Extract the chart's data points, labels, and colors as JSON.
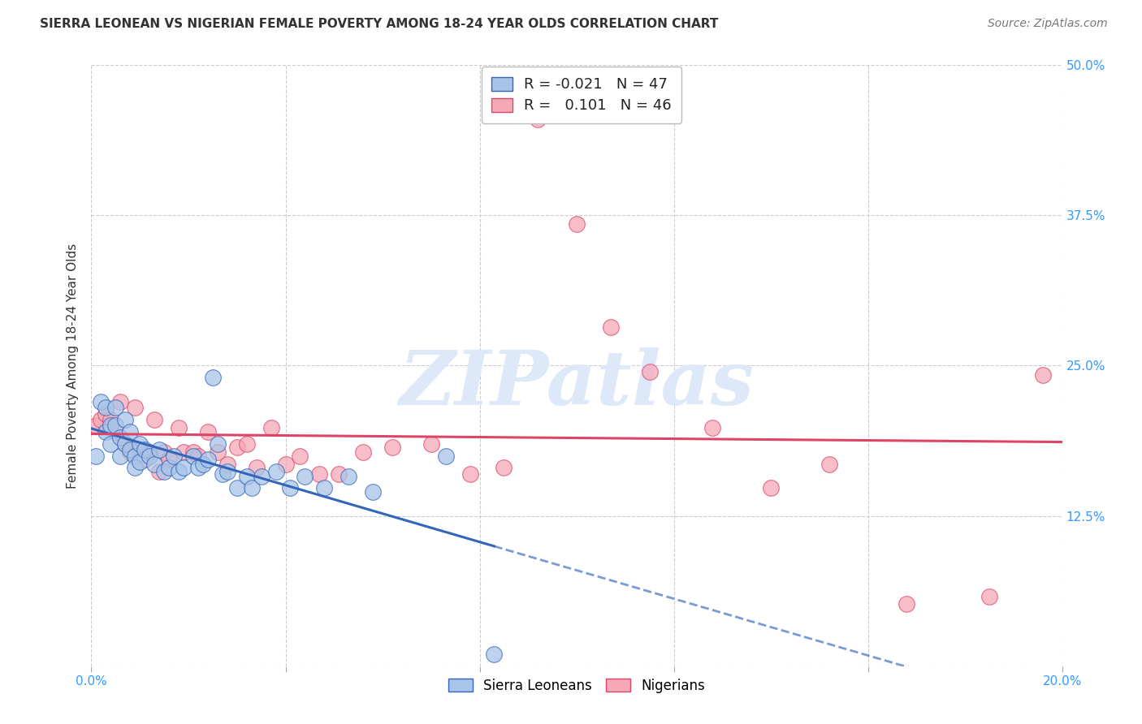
{
  "title": "SIERRA LEONEAN VS NIGERIAN FEMALE POVERTY AMONG 18-24 YEAR OLDS CORRELATION CHART",
  "source": "Source: ZipAtlas.com",
  "ylabel": "Female Poverty Among 18-24 Year Olds",
  "xlim": [
    0.0,
    0.2
  ],
  "ylim": [
    0.0,
    0.5
  ],
  "sl_R": -0.021,
  "sl_N": 47,
  "ng_R": 0.101,
  "ng_N": 46,
  "sl_color": "#a8c4e8",
  "ng_color": "#f5a8b8",
  "sl_line_color": "#3366bb",
  "ng_line_color": "#dd4466",
  "background_color": "#ffffff",
  "grid_color": "#cccccc",
  "watermark_text": "ZIPatlas",
  "watermark_color": "#dde8f8",
  "sl_x": [
    0.001,
    0.002,
    0.003,
    0.003,
    0.004,
    0.004,
    0.005,
    0.005,
    0.006,
    0.006,
    0.007,
    0.007,
    0.008,
    0.008,
    0.009,
    0.009,
    0.01,
    0.01,
    0.011,
    0.012,
    0.013,
    0.014,
    0.015,
    0.016,
    0.017,
    0.018,
    0.019,
    0.021,
    0.022,
    0.023,
    0.024,
    0.025,
    0.026,
    0.027,
    0.028,
    0.03,
    0.032,
    0.033,
    0.035,
    0.038,
    0.041,
    0.044,
    0.048,
    0.053,
    0.058,
    0.073,
    0.083
  ],
  "sl_y": [
    0.175,
    0.22,
    0.195,
    0.215,
    0.2,
    0.185,
    0.215,
    0.2,
    0.19,
    0.175,
    0.205,
    0.185,
    0.18,
    0.195,
    0.175,
    0.165,
    0.185,
    0.17,
    0.18,
    0.175,
    0.168,
    0.18,
    0.162,
    0.165,
    0.175,
    0.162,
    0.165,
    0.175,
    0.165,
    0.168,
    0.172,
    0.24,
    0.185,
    0.16,
    0.162,
    0.148,
    0.158,
    0.148,
    0.158,
    0.162,
    0.148,
    0.158,
    0.148,
    0.158,
    0.145,
    0.175,
    0.01
  ],
  "ng_x": [
    0.001,
    0.002,
    0.003,
    0.004,
    0.005,
    0.006,
    0.007,
    0.008,
    0.009,
    0.01,
    0.011,
    0.012,
    0.013,
    0.014,
    0.015,
    0.016,
    0.018,
    0.019,
    0.021,
    0.022,
    0.024,
    0.026,
    0.028,
    0.03,
    0.032,
    0.034,
    0.037,
    0.04,
    0.043,
    0.047,
    0.051,
    0.056,
    0.062,
    0.07,
    0.078,
    0.085,
    0.092,
    0.1,
    0.107,
    0.115,
    0.128,
    0.14,
    0.152,
    0.168,
    0.185,
    0.196
  ],
  "ng_y": [
    0.2,
    0.205,
    0.21,
    0.205,
    0.195,
    0.22,
    0.185,
    0.178,
    0.215,
    0.18,
    0.172,
    0.178,
    0.205,
    0.162,
    0.178,
    0.172,
    0.198,
    0.178,
    0.178,
    0.175,
    0.195,
    0.178,
    0.168,
    0.182,
    0.185,
    0.165,
    0.198,
    0.168,
    0.175,
    0.16,
    0.16,
    0.178,
    0.182,
    0.185,
    0.16,
    0.165,
    0.455,
    0.368,
    0.282,
    0.245,
    0.198,
    0.148,
    0.168,
    0.052,
    0.058,
    0.242
  ]
}
